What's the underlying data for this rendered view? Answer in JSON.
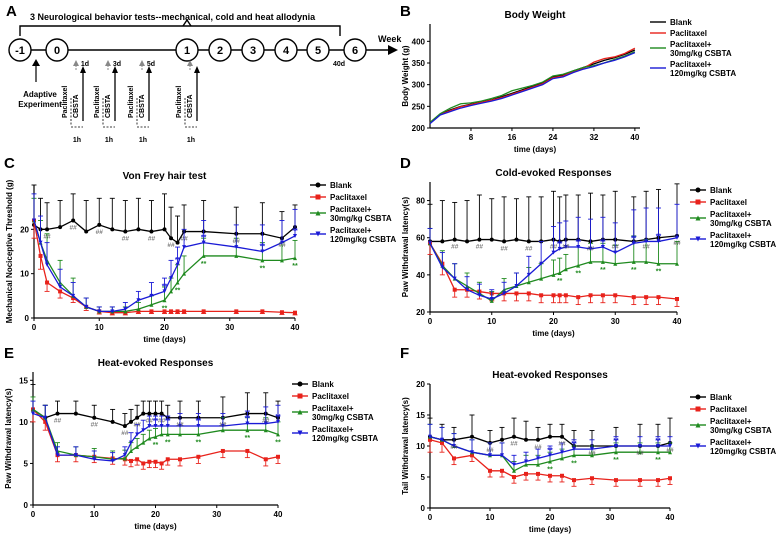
{
  "panel_letters": [
    "A",
    "B",
    "C",
    "D",
    "E",
    "F"
  ],
  "timeline": {
    "title": "3 Neurological behavior tests--mechanical, cold and heat allodynia",
    "axis_label": "Week",
    "nodes": [
      "-1",
      "0",
      "1",
      "2",
      "3",
      "4",
      "5",
      "6"
    ],
    "day_marks": [
      "1d",
      "3d",
      "5d",
      "40d"
    ],
    "drug": "Paclitaxel",
    "treatment": "CBSTA",
    "interval": "1h",
    "start_label": [
      "Adaptive",
      "Experiment"
    ]
  },
  "colors": {
    "blank": "#000000",
    "paclitaxel": "#e8221b",
    "low": "#1f8a1f",
    "high": "#1a1ad6"
  },
  "legend": {
    "blank": "Blank",
    "paclitaxel": "Paclitaxel",
    "low_line1": "Paclitaxel+",
    "low_line2": "30mg/kg CSBTA",
    "high_line1": "Paclitaxel+",
    "high_line2": "120mg/kg CSBTA"
  },
  "markers": {
    "blank_sig": "##",
    "drug_sig": "**"
  },
  "chart_data": [
    {
      "id": "B",
      "type": "line",
      "title": "Body Weight",
      "xlabel": "time (days)",
      "ylabel": "Body Weight (g)",
      "xlim": [
        0,
        41
      ],
      "ylim": [
        200,
        440
      ],
      "xticks": [
        8,
        16,
        24,
        32,
        40
      ],
      "yticks": [
        200,
        250,
        300,
        350,
        400
      ],
      "x": [
        0,
        2,
        4,
        6,
        8,
        10,
        12,
        14,
        16,
        18,
        20,
        22,
        24,
        26,
        28,
        30,
        32,
        34,
        36,
        38,
        40
      ],
      "series": [
        {
          "name": "Blank",
          "key": "blank",
          "values": [
            212,
            232,
            242,
            250,
            255,
            260,
            265,
            272,
            280,
            288,
            296,
            304,
            318,
            322,
            332,
            340,
            348,
            356,
            362,
            370,
            380
          ]
        },
        {
          "name": "Paclitaxel",
          "key": "paclitaxel",
          "values": [
            211,
            231,
            240,
            249,
            254,
            259,
            264,
            270,
            278,
            286,
            294,
            302,
            316,
            320,
            330,
            338,
            352,
            360,
            364,
            372,
            384
          ]
        },
        {
          "name": "Paclitaxel+ 30mg/kg CSBTA",
          "key": "low",
          "values": [
            213,
            233,
            246,
            256,
            258,
            262,
            268,
            275,
            286,
            292,
            298,
            306,
            320,
            324,
            332,
            340,
            344,
            350,
            358,
            366,
            376
          ]
        },
        {
          "name": "Paclitaxel+ 120mg/kg CSBTA",
          "key": "high",
          "values": [
            210,
            230,
            238,
            246,
            252,
            257,
            262,
            268,
            276,
            284,
            292,
            300,
            314,
            318,
            328,
            336,
            342,
            350,
            356,
            364,
            374
          ]
        }
      ]
    },
    {
      "id": "C",
      "type": "line",
      "title": "Von Frey hair test",
      "xlabel": "time (days)",
      "ylabel": "Mechanical Nociceptive Threshold (g)",
      "xlim": [
        0,
        40
      ],
      "ylim": [
        0,
        30
      ],
      "xticks": [
        0,
        10,
        20,
        30,
        40
      ],
      "yticks": [
        0,
        10,
        20
      ],
      "x": [
        0,
        1,
        2,
        4,
        6,
        8,
        10,
        12,
        14,
        16,
        18,
        20,
        21,
        22,
        23,
        26,
        31,
        35,
        38,
        40
      ],
      "series": [
        {
          "name": "Blank",
          "key": "blank",
          "values": [
            21,
            20,
            20,
            20.5,
            22,
            19.5,
            21,
            20,
            19.5,
            20,
            19.5,
            20,
            18,
            17,
            19.5,
            19.5,
            19,
            19,
            18,
            20.5
          ],
          "err": [
            9,
            7,
            6,
            6,
            6,
            7,
            6,
            7,
            7,
            7,
            7,
            8,
            7,
            6,
            6,
            7,
            6,
            7,
            6,
            5
          ]
        },
        {
          "name": "Paclitaxel",
          "key": "paclitaxel",
          "values": [
            22,
            14,
            8,
            6,
            4.5,
            2.5,
            1.5,
            1.2,
            1.2,
            1.5,
            1.5,
            1.5,
            1.5,
            1.5,
            1.5,
            1.5,
            1.5,
            1.5,
            1.3,
            1.2
          ],
          "err": [
            4,
            3,
            2,
            1.5,
            1,
            0.8,
            0.6,
            0.5,
            0.5,
            0.5,
            0.5,
            0.5,
            0.5,
            0.5,
            0.5,
            0.5,
            0.5,
            0.5,
            0.5,
            0.5
          ]
        },
        {
          "name": "Paclitaxel+ 30mg/kg CSBTA",
          "key": "low",
          "values": [
            22,
            17,
            13,
            8,
            5,
            2.5,
            1.5,
            1.5,
            1.5,
            2,
            3,
            4,
            6,
            8,
            10,
            14,
            14,
            13,
            13,
            13.5
          ],
          "err": [
            5,
            5,
            6,
            5,
            4,
            2,
            1,
            1,
            1,
            1.5,
            2,
            3,
            3,
            4,
            4,
            4,
            4,
            4,
            4,
            4
          ]
        },
        {
          "name": "Paclitaxel+ 120mg/kg CSBTA",
          "key": "high",
          "values": [
            22,
            17,
            12,
            7,
            5,
            2.5,
            1.5,
            1.5,
            2,
            4,
            5,
            6,
            9,
            12,
            16,
            17,
            16,
            15,
            17,
            18.5
          ],
          "err": [
            6,
            6,
            5,
            4,
            3,
            2,
            1,
            1,
            1.5,
            2,
            3,
            3,
            4,
            4,
            4,
            5,
            5,
            6,
            5,
            6
          ]
        }
      ]
    },
    {
      "id": "D",
      "type": "line",
      "title": "Cold-evoked Responses",
      "xlabel": "time (days)",
      "ylabel": "Paw Withdrawal latency(s)",
      "xlim": [
        0,
        40
      ],
      "ylim": [
        20,
        90
      ],
      "xticks": [
        0,
        10,
        20,
        30,
        40
      ],
      "yticks": [
        20,
        40,
        60,
        80
      ],
      "x": [
        0,
        2,
        4,
        6,
        8,
        10,
        12,
        14,
        16,
        18,
        20,
        21,
        22,
        24,
        26,
        28,
        30,
        33,
        35,
        37,
        40
      ],
      "series": [
        {
          "name": "Blank",
          "key": "blank",
          "values": [
            58,
            58,
            59,
            58,
            59,
            59,
            58,
            59,
            58,
            58,
            59,
            58,
            59,
            59,
            58,
            59,
            59,
            58,
            59,
            60,
            61
          ],
          "err": [
            20,
            22,
            20,
            22,
            24,
            22,
            24,
            22,
            24,
            24,
            26,
            24,
            24,
            24,
            26,
            24,
            26,
            24,
            26,
            26,
            28
          ]
        },
        {
          "name": "Paclitaxel",
          "key": "paclitaxel",
          "values": [
            57,
            46,
            32,
            32,
            31,
            30,
            30,
            30,
            30,
            29,
            29,
            29,
            29,
            28,
            29,
            29,
            29,
            28,
            28,
            28,
            27
          ],
          "err": [
            6,
            6,
            4,
            4,
            4,
            4,
            4,
            4,
            4,
            4,
            4,
            4,
            4,
            4,
            4,
            4,
            4,
            4,
            4,
            4,
            4
          ]
        },
        {
          "name": "Paclitaxel+ 30mg/kg CSBTA",
          "key": "low",
          "values": [
            57,
            45,
            38,
            34,
            30,
            26,
            32,
            34,
            36,
            38,
            40,
            41,
            43,
            45,
            47,
            47,
            46,
            47,
            47,
            46,
            46
          ],
          "err": [
            8,
            8,
            8,
            7,
            6,
            5,
            6,
            7,
            8,
            8,
            8,
            8,
            8,
            10,
            10,
            10,
            10,
            14,
            12,
            12,
            12
          ]
        },
        {
          "name": "Paclitaxel+ 120mg/kg CSBTA",
          "key": "high",
          "values": [
            57,
            44,
            38,
            32,
            29,
            27,
            30,
            34,
            40,
            46,
            52,
            54,
            55,
            55,
            54,
            55,
            52,
            57,
            58,
            58,
            60
          ],
          "err": [
            8,
            8,
            8,
            7,
            6,
            5,
            6,
            7,
            10,
            12,
            14,
            14,
            14,
            16,
            16,
            16,
            16,
            18,
            18,
            18,
            18
          ]
        }
      ]
    },
    {
      "id": "E",
      "type": "line",
      "title": "Heat-evoked Responses",
      "xlabel": "time (days)",
      "ylabel": "Paw Withdrawal latency(s)",
      "xlim": [
        0,
        40
      ],
      "ylim": [
        0,
        16
      ],
      "xticks": [
        0,
        10,
        20,
        30,
        40
      ],
      "yticks": [
        0,
        5,
        10,
        15
      ],
      "x": [
        0,
        2,
        4,
        7,
        10,
        13,
        15,
        16,
        17,
        18,
        19,
        20,
        21,
        22,
        24,
        27,
        31,
        35,
        38,
        40
      ],
      "series": [
        {
          "name": "Blank",
          "key": "blank",
          "values": [
            11.5,
            10.5,
            11,
            11,
            10.5,
            10,
            9.5,
            10,
            10.5,
            11,
            11,
            11,
            11,
            10.5,
            10.5,
            10.5,
            10.5,
            11,
            11,
            10.5
          ],
          "err": [
            3,
            1.5,
            1.5,
            1.5,
            1.5,
            1.5,
            1.5,
            1.5,
            1.5,
            1.5,
            1.5,
            1.5,
            1.5,
            1.5,
            2,
            2,
            2.5,
            2.5,
            2.5,
            2
          ]
        },
        {
          "name": "Paclitaxel",
          "key": "paclitaxel",
          "values": [
            11.5,
            10,
            6,
            6,
            5.8,
            5.6,
            5.5,
            5.3,
            5.5,
            5,
            5.2,
            5.2,
            5,
            5.5,
            5.5,
            5.8,
            6.5,
            6.5,
            5.5,
            5.8
          ],
          "err": [
            1.5,
            1,
            0.8,
            0.8,
            0.7,
            0.7,
            0.7,
            0.7,
            0.7,
            0.7,
            0.7,
            0.7,
            0.7,
            0.7,
            0.8,
            0.8,
            0.8,
            0.8,
            0.8,
            0.8
          ]
        },
        {
          "name": "Paclitaxel+ 30mg/kg CSBTA",
          "key": "low",
          "values": [
            11.5,
            10.5,
            6.5,
            6,
            5.8,
            5.5,
            5.6,
            6.5,
            7,
            7.5,
            8,
            8.2,
            8.5,
            8.5,
            8.5,
            8.5,
            9,
            9,
            9,
            8.5
          ],
          "err": [
            1.5,
            1.5,
            1,
            1,
            1,
            1,
            1,
            1,
            1,
            1,
            1,
            1,
            1,
            1,
            1,
            1,
            1.5,
            1.5,
            1.5,
            1.5
          ]
        },
        {
          "name": "Paclitaxel+ 120mg/kg CSBTA",
          "key": "high",
          "values": [
            11,
            10.5,
            6,
            6,
            5.5,
            5.3,
            6,
            7.5,
            8.5,
            9,
            9.5,
            9.5,
            9.5,
            9.5,
            9.5,
            9.5,
            9.5,
            9.8,
            9.8,
            10
          ],
          "err": [
            1.5,
            1.5,
            1,
            1,
            1,
            1,
            1,
            1.2,
            1.2,
            1.2,
            1.2,
            1.2,
            1.2,
            1.2,
            1.5,
            1.5,
            1.5,
            1.5,
            2,
            2
          ]
        }
      ]
    },
    {
      "id": "F",
      "type": "line",
      "title": "Heat-evoked Responses",
      "xlabel": "time (days)",
      "ylabel": "Tail Withdrawal latency(s)",
      "xlim": [
        0,
        40
      ],
      "ylim": [
        0,
        20
      ],
      "xticks": [
        0,
        10,
        20,
        30,
        40
      ],
      "yticks": [
        0,
        5,
        10,
        15,
        20
      ],
      "x": [
        0,
        2,
        4,
        7,
        10,
        12,
        14,
        16,
        18,
        20,
        22,
        24,
        27,
        31,
        35,
        38,
        40
      ],
      "series": [
        {
          "name": "Blank",
          "key": "blank",
          "values": [
            11.5,
            11,
            11,
            11.5,
            10.5,
            11,
            11.5,
            11,
            11,
            11.5,
            11.5,
            10,
            10,
            10,
            10,
            10,
            10.5
          ],
          "err": [
            3,
            2.5,
            2,
            3.5,
            2,
            2,
            3,
            3,
            2,
            2,
            2,
            2.5,
            2.5,
            3,
            3.5,
            3.5,
            4
          ]
        },
        {
          "name": "Paclitaxel",
          "key": "paclitaxel",
          "values": [
            11,
            10.5,
            8,
            8.5,
            6,
            6,
            5,
            5.5,
            5.5,
            5.2,
            5.2,
            4.5,
            4.8,
            4.5,
            4.5,
            4.5,
            4.8
          ],
          "err": [
            2,
            1.5,
            1,
            1,
            1,
            1,
            1,
            1,
            1,
            1,
            1,
            1,
            1,
            1,
            1,
            1,
            1
          ]
        },
        {
          "name": "Paclitaxel+ 30mg/kg CSBTA",
          "key": "low",
          "values": [
            11.5,
            11,
            10,
            9,
            8.5,
            8.5,
            6,
            7,
            7,
            7.5,
            8,
            8.5,
            8.5,
            9,
            9,
            9,
            9
          ],
          "err": [
            2,
            2,
            2,
            2,
            2,
            2,
            1.5,
            1.5,
            1.5,
            1.5,
            1.5,
            1.5,
            1.5,
            1.5,
            1.5,
            1.5,
            1.5
          ]
        },
        {
          "name": "Paclitaxel+ 120mg/kg CSBTA",
          "key": "high",
          "values": [
            11.5,
            11,
            10,
            9,
            8.5,
            8.5,
            7,
            7.5,
            8,
            8.5,
            9,
            9.5,
            9.5,
            10,
            10,
            10,
            10
          ],
          "err": [
            2,
            2,
            2,
            2,
            2,
            2,
            1.5,
            1.5,
            1.5,
            1.5,
            1.5,
            1.5,
            1.5,
            1.5,
            1.5,
            1.5,
            1.5
          ]
        }
      ]
    }
  ]
}
